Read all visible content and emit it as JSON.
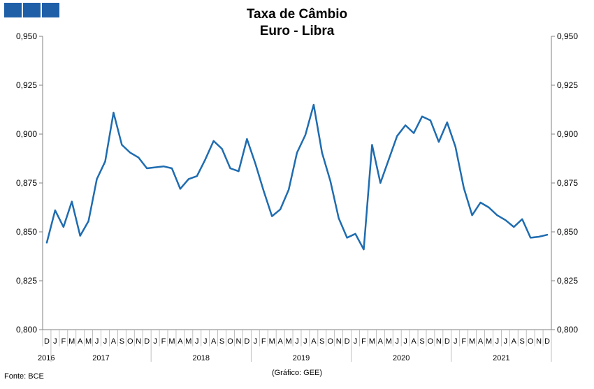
{
  "header": {
    "logo_color": "#1f5fa8",
    "title_line1": "Taxa de Câmbio",
    "title_line2": "Euro - Libra"
  },
  "footer": {
    "source": "Fonte: BCE",
    "credit": "(Gráfico: GEE)"
  },
  "chart_data": {
    "type": "line",
    "title": "Taxa de Câmbio Euro - Libra",
    "ylim": [
      0.8,
      0.95
    ],
    "yticks": [
      "0,800",
      "0,825",
      "0,850",
      "0,875",
      "0,900",
      "0,925",
      "0,950"
    ],
    "grid": false,
    "line_color": "#1f6cb0",
    "month_labels": [
      "D",
      "J",
      "F",
      "M",
      "A",
      "M",
      "J",
      "J",
      "A",
      "S",
      "O",
      "N",
      "D",
      "J",
      "F",
      "M",
      "A",
      "M",
      "J",
      "J",
      "A",
      "S",
      "O",
      "N",
      "D",
      "J",
      "F",
      "M",
      "A",
      "M",
      "J",
      "J",
      "A",
      "S",
      "O",
      "N",
      "D",
      "J",
      "F",
      "M",
      "A",
      "M",
      "J",
      "J",
      "A",
      "S",
      "O",
      "N",
      "D",
      "J",
      "F",
      "M",
      "A",
      "M",
      "J",
      "J",
      "A",
      "S",
      "O",
      "N",
      "D"
    ],
    "year_labels": [
      "2016",
      "2017",
      "2018",
      "2019",
      "2020",
      "2021"
    ],
    "series": [
      {
        "values": [
          0.8445,
          0.861,
          0.8525,
          0.8655,
          0.848,
          0.8555,
          0.877,
          0.886,
          0.911,
          0.8945,
          0.8905,
          0.888,
          0.8825,
          0.883,
          0.8835,
          0.8825,
          0.872,
          0.877,
          0.8785,
          0.887,
          0.8965,
          0.8925,
          0.8825,
          0.881,
          0.8975,
          0.885,
          0.871,
          0.858,
          0.8615,
          0.8715,
          0.8905,
          0.8995,
          0.915,
          0.8905,
          0.876,
          0.857,
          0.847,
          0.849,
          0.841,
          0.8945,
          0.875,
          0.887,
          0.899,
          0.9045,
          0.9005,
          0.909,
          0.907,
          0.896,
          0.906,
          0.8935,
          0.8725,
          0.8585,
          0.865,
          0.8625,
          0.8585,
          0.856,
          0.8525,
          0.8565,
          0.847,
          0.8475,
          0.8485
        ]
      }
    ]
  }
}
